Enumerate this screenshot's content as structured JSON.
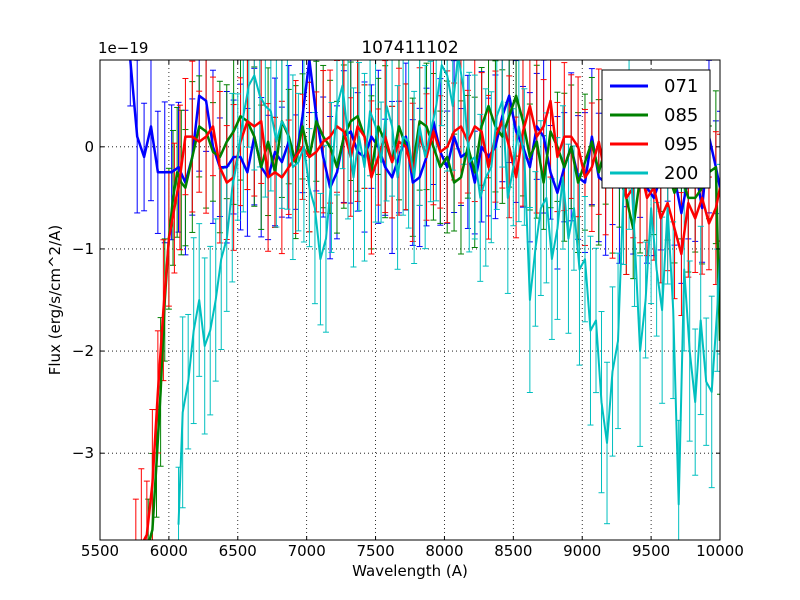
{
  "chart_data": {
    "type": "line",
    "title": "107411102",
    "xlabel": "Wavelength (A)",
    "ylabel": "Flux (erg/s/cm^2/A)",
    "y_scale_label": "1e−19",
    "xlim": [
      5500,
      10000
    ],
    "ylim": [
      -3.85,
      0.85
    ],
    "x_ticks": [
      5500,
      6000,
      6500,
      7000,
      7500,
      8000,
      8500,
      9000,
      9500,
      10000
    ],
    "y_ticks": [
      -3,
      -2,
      -1,
      0
    ],
    "y_tick_labels": [
      "−3",
      "−2",
      "−1",
      "0"
    ],
    "grid": true,
    "legend_position": "top-right",
    "series": [
      {
        "name": "071",
        "color": "#0000ff",
        "x": [
          5720,
          5770,
          5820,
          5870,
          5920,
          5970,
          6020,
          6070,
          6120,
          6170,
          6220,
          6270,
          6320,
          6370,
          6420,
          6470,
          6520,
          6570,
          6620,
          6670,
          6720,
          6770,
          6820,
          6870,
          6920,
          6970,
          7020,
          7070,
          7120,
          7170,
          7220,
          7270,
          7320,
          7370,
          7420,
          7470,
          7520,
          7570,
          7620,
          7670,
          7720,
          7770,
          7820,
          7870,
          7920,
          7970,
          8020,
          8070,
          8120,
          8170,
          8220,
          8270,
          8320,
          8370,
          8420,
          8470,
          8520,
          8570,
          8620,
          8670,
          8720,
          8770,
          8820,
          8870,
          8920,
          8970,
          9020,
          9070,
          9120,
          9170,
          9220,
          9270,
          9320,
          9370,
          9420,
          9470,
          9520,
          9570,
          9620,
          9670,
          9720,
          9770,
          9820,
          9870,
          9920,
          9970,
          10000
        ],
        "y": [
          0.85,
          0.1,
          -0.1,
          0.2,
          -0.25,
          -0.25,
          -0.25,
          -0.2,
          -0.35,
          -0.1,
          0.5,
          0.45,
          0.0,
          -0.2,
          -0.2,
          -0.1,
          -0.1,
          -0.25,
          0.1,
          -0.2,
          -0.3,
          -0.05,
          -0.15,
          0.05,
          -0.15,
          0.3,
          0.85,
          0.3,
          -0.1,
          -0.4,
          -0.25,
          0.1,
          0.15,
          -0.05,
          -0.1,
          0.1,
          0.0,
          -0.2,
          -0.3,
          -0.1,
          0.1,
          -0.35,
          -0.3,
          -0.1,
          0.25,
          -0.05,
          -0.2,
          0.1,
          -0.1,
          -0.05,
          -0.35,
          0.0,
          -0.1,
          0.0,
          0.3,
          0.5,
          0.15,
          0.0,
          -0.2,
          0.2,
          0.1,
          -0.25,
          -0.45,
          -0.2,
          0.0,
          -0.3,
          -0.35,
          0.1,
          -0.3,
          -0.35,
          -0.2,
          -0.4,
          -0.1,
          -0.3,
          -0.2,
          -0.4,
          -0.5,
          -0.3,
          0.1,
          -0.3,
          -0.65,
          -0.3,
          -0.2,
          -0.6,
          0.1,
          -0.2,
          -0.4
        ],
        "err": 0.6
      },
      {
        "name": "085",
        "color": "#008000",
        "x": [
          5850,
          5880,
          5910,
          5940,
          5970,
          6000,
          6030,
          6060,
          6090,
          6120,
          6170,
          6220,
          6270,
          6320,
          6370,
          6420,
          6470,
          6520,
          6570,
          6620,
          6670,
          6720,
          6770,
          6820,
          6870,
          6920,
          6970,
          7020,
          7070,
          7120,
          7170,
          7220,
          7270,
          7320,
          7370,
          7420,
          7470,
          7520,
          7570,
          7620,
          7670,
          7720,
          7770,
          7820,
          7870,
          7920,
          7970,
          8020,
          8070,
          8120,
          8170,
          8220,
          8270,
          8320,
          8370,
          8420,
          8470,
          8520,
          8570,
          8620,
          8670,
          8720,
          8770,
          8820,
          8870,
          8920,
          8970,
          9020,
          9070,
          9120,
          9170,
          9220,
          9270,
          9320,
          9370,
          9420,
          9470,
          9520,
          9570,
          9620,
          9670,
          9720,
          9770,
          9820,
          9870,
          9920,
          9970,
          10000
        ],
        "y": [
          -3.9,
          -3.75,
          -3.1,
          -2.4,
          -1.5,
          -0.9,
          -0.5,
          -0.25,
          -0.35,
          -0.4,
          -0.1,
          0.2,
          0.15,
          -0.05,
          -0.1,
          0.05,
          0.15,
          0.3,
          0.25,
          0.1,
          -0.2,
          0.05,
          -0.25,
          0.25,
          0.1,
          -0.15,
          0.2,
          -0.1,
          0.25,
          0.1,
          0.0,
          -0.2,
          0.1,
          0.25,
          0.3,
          0.1,
          -0.25,
          0.2,
          0.05,
          -0.15,
          0.2,
          0.0,
          -0.2,
          0.25,
          0.2,
          0.0,
          -0.2,
          -0.1,
          -0.35,
          -0.3,
          0.0,
          -0.25,
          0.2,
          0.4,
          0.2,
          0.1,
          0.3,
          0.5,
          0.25,
          -0.1,
          0.05,
          -0.35,
          0.15,
          0.0,
          -0.2,
          0.0,
          -0.35,
          -0.15,
          0.05,
          -0.25,
          0.0,
          -0.3,
          -0.3,
          -0.5,
          -0.8,
          -0.3,
          -0.35,
          -0.15,
          0.0,
          -0.25,
          -0.45,
          -0.3,
          -0.5,
          -0.5,
          -0.4,
          -0.25,
          -0.2,
          -1.9
        ],
        "err": 0.6
      },
      {
        "name": "095",
        "color": "#ff0000",
        "x": [
          5760,
          5800,
          5840,
          5880,
          5920,
          5960,
          6000,
          6040,
          6080,
          6120,
          6170,
          6220,
          6270,
          6320,
          6370,
          6420,
          6470,
          6520,
          6570,
          6620,
          6670,
          6720,
          6770,
          6820,
          6870,
          6920,
          6970,
          7020,
          7070,
          7120,
          7170,
          7220,
          7270,
          7320,
          7370,
          7420,
          7470,
          7520,
          7570,
          7620,
          7670,
          7720,
          7770,
          7820,
          7870,
          7920,
          7970,
          8020,
          8070,
          8120,
          8170,
          8220,
          8270,
          8320,
          8370,
          8420,
          8470,
          8520,
          8570,
          8620,
          8670,
          8720,
          8770,
          8820,
          8870,
          8920,
          8970,
          9020,
          9070,
          9120,
          9170,
          9220,
          9270,
          9320,
          9370,
          9420,
          9470,
          9520,
          9570,
          9620,
          9670,
          9720,
          9770,
          9820,
          9870,
          9920,
          9970,
          10000
        ],
        "y": [
          -3.9,
          -3.9,
          -3.8,
          -3.3,
          -2.4,
          -1.6,
          -0.9,
          -0.6,
          -0.3,
          0.1,
          0.1,
          0.05,
          0.1,
          0.2,
          -0.2,
          -0.35,
          -0.3,
          0.05,
          0.25,
          0.2,
          0.25,
          -0.3,
          -0.25,
          -0.3,
          -0.2,
          -0.1,
          0.0,
          -0.1,
          -0.05,
          0.05,
          0.1,
          0.2,
          0.15,
          -0.1,
          0.2,
          0.1,
          -0.3,
          -0.1,
          0.1,
          -0.15,
          0.05,
          0.0,
          -0.25,
          0.1,
          -0.1,
          0.15,
          -0.05,
          0.0,
          0.15,
          0.2,
          0.05,
          0.2,
          0.15,
          -0.2,
          0.1,
          0.25,
          0.0,
          -0.3,
          0.15,
          0.4,
          0.1,
          0.2,
          0.45,
          -0.1,
          0.1,
          0.1,
          0.0,
          -0.3,
          -0.2,
          0.05,
          -0.3,
          -0.35,
          0.1,
          -0.5,
          -0.4,
          -0.2,
          -0.5,
          -0.4,
          -0.7,
          -0.55,
          -0.8,
          -1.05,
          -0.55,
          -0.7,
          -0.5,
          -0.75,
          -0.6,
          -0.4
        ],
        "err": 0.6
      },
      {
        "name": "200",
        "color": "#00bfbf",
        "x": [
          6070,
          6100,
          6140,
          6180,
          6220,
          6260,
          6300,
          6340,
          6380,
          6420,
          6460,
          6500,
          6540,
          6580,
          6620,
          6660,
          6700,
          6740,
          6780,
          6820,
          6860,
          6900,
          6940,
          6980,
          7020,
          7060,
          7100,
          7140,
          7180,
          7220,
          7260,
          7300,
          7340,
          7380,
          7420,
          7460,
          7500,
          7540,
          7580,
          7620,
          7660,
          7700,
          7740,
          7780,
          7820,
          7860,
          7900,
          7940,
          7980,
          8020,
          8060,
          8100,
          8140,
          8180,
          8220,
          8260,
          8300,
          8340,
          8380,
          8420,
          8460,
          8500,
          8540,
          8580,
          8620,
          8660,
          8700,
          8740,
          8780,
          8820,
          8860,
          8900,
          8940,
          8980,
          9020,
          9060,
          9100,
          9140,
          9180,
          9220,
          9260,
          9300,
          9340,
          9380,
          9420,
          9460,
          9500,
          9540,
          9580,
          9620,
          9660,
          9700,
          9740,
          9780,
          9820,
          9860,
          9900,
          9940,
          9980,
          10000
        ],
        "y": [
          -3.7,
          -2.6,
          -2.3,
          -1.8,
          -1.5,
          -1.95,
          -1.8,
          -1.5,
          -1.1,
          -0.9,
          -0.4,
          -0.1,
          0.3,
          0.6,
          0.7,
          0.5,
          0.4,
          0.35,
          0.05,
          0.25,
          0.15,
          -0.2,
          -0.15,
          0.0,
          -0.4,
          -0.6,
          -1.1,
          -0.9,
          -0.3,
          0.4,
          0.6,
          0.1,
          -0.3,
          0.1,
          -0.2,
          0.35,
          0.2,
          -0.15,
          0.4,
          0.2,
          -0.3,
          0.1,
          0.05,
          -0.3,
          0.2,
          -0.1,
          0.15,
          0.4,
          0.8,
          0.7,
          0.4,
          0.9,
          0.55,
          -0.15,
          -0.1,
          -0.5,
          -0.3,
          -0.2,
          0.3,
          0.45,
          -0.5,
          -0.2,
          0.2,
          -0.1,
          -1.5,
          -1.0,
          -0.6,
          -0.5,
          -1.1,
          -0.8,
          -0.3,
          -0.9,
          -0.6,
          -1.2,
          -1.1,
          -1.8,
          -1.7,
          -2.5,
          -2.9,
          -2.2,
          -1.9,
          -0.4,
          0.1,
          -0.9,
          -2.0,
          -1.5,
          -0.6,
          -1.2,
          -1.6,
          -0.6,
          -1.6,
          -3.5,
          -1.2,
          -2.0,
          -2.5,
          -1.7,
          -2.3,
          -2.4,
          -1.6,
          -1.1
        ],
        "err": 0.75
      }
    ]
  }
}
